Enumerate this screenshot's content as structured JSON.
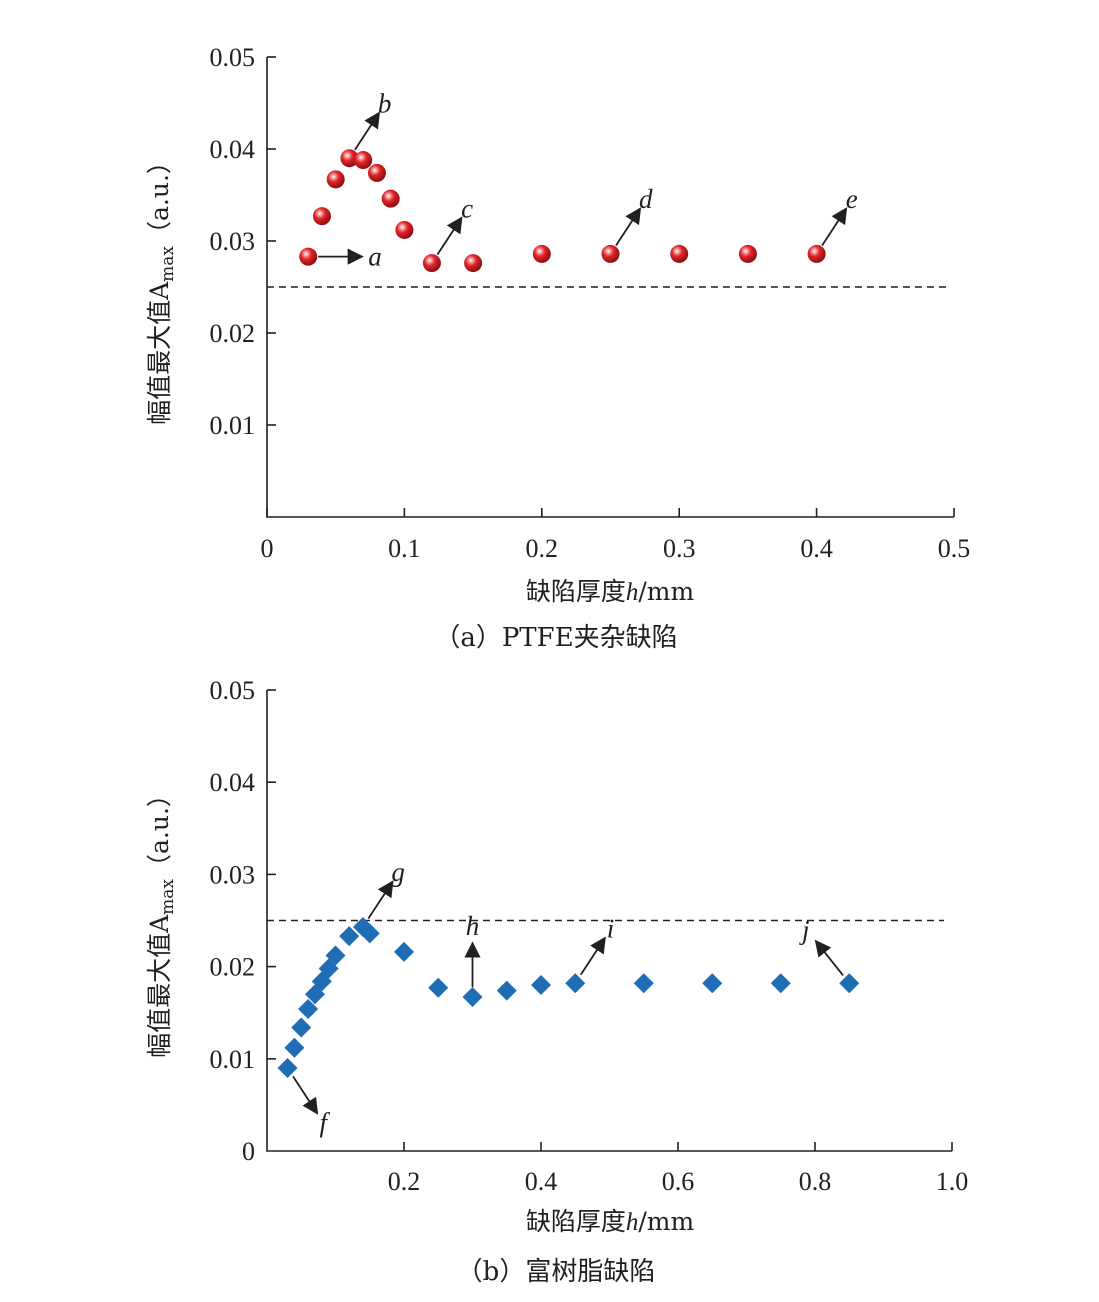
{
  "chart_data": [
    {
      "type": "scatter",
      "caption": "（a）PTFE夹杂缺陷",
      "xlabel_parts": [
        "缺陷厚度",
        "h",
        "/mm"
      ],
      "ylabel_parts": [
        "幅值最大值A",
        "max",
        "（a.u.）"
      ],
      "xlim": [
        0,
        0.5
      ],
      "ylim": [
        0,
        0.05
      ],
      "xticks": [
        0,
        0.1,
        0.2,
        0.3,
        0.4,
        0.5
      ],
      "xtick_labels": [
        "0",
        "0.1",
        "0.2",
        "0.3",
        "0.4",
        "0.5"
      ],
      "yticks": [
        0.01,
        0.02,
        0.03,
        0.04,
        0.05
      ],
      "ytick_labels": [
        "0.01",
        "0.02",
        "0.03",
        "0.04",
        "0.05"
      ],
      "threshold": 0.025,
      "marker": "sphere",
      "color": "#e0262a",
      "series": [
        {
          "x": [
            0.03,
            0.04,
            0.05,
            0.06,
            0.07,
            0.08,
            0.09,
            0.1,
            0.12,
            0.15,
            0.2,
            0.25,
            0.3,
            0.35,
            0.4
          ],
          "y": [
            0.0283,
            0.0327,
            0.0367,
            0.039,
            0.0388,
            0.0374,
            0.0346,
            0.0312,
            0.0276,
            0.0276,
            0.0286,
            0.0286,
            0.0286,
            0.0286,
            0.0286
          ]
        }
      ],
      "annotations": [
        {
          "label": "a",
          "x": 0.03,
          "y": 0.0283,
          "dir": "right"
        },
        {
          "label": "b",
          "x": 0.06,
          "y": 0.039,
          "dir": "up-right"
        },
        {
          "label": "c",
          "x": 0.12,
          "y": 0.0276,
          "dir": "up-right"
        },
        {
          "label": "d",
          "x": 0.25,
          "y": 0.0286,
          "dir": "up-right"
        },
        {
          "label": "e",
          "x": 0.4,
          "y": 0.0286,
          "dir": "up-right"
        }
      ]
    },
    {
      "type": "scatter",
      "caption": "（b）富树脂缺陷",
      "xlabel_parts": [
        "缺陷厚度",
        "h",
        "/mm"
      ],
      "ylabel_parts": [
        "幅值最大值A",
        "max",
        "（a.u.）"
      ],
      "xlim": [
        0,
        1.0
      ],
      "ylim": [
        0,
        0.05
      ],
      "xticks": [
        0.2,
        0.4,
        0.6,
        0.8,
        1.0
      ],
      "xtick_labels": [
        "0.2",
        "0.4",
        "0.6",
        "0.8",
        "1.0"
      ],
      "yticks": [
        0,
        0.01,
        0.02,
        0.03,
        0.04,
        0.05
      ],
      "ytick_labels": [
        "0",
        "0.01",
        "0.02",
        "0.03",
        "0.04",
        "0.05"
      ],
      "threshold": 0.025,
      "marker": "diamond",
      "color": "#1f6db5",
      "series": [
        {
          "x": [
            0.03,
            0.04,
            0.05,
            0.06,
            0.07,
            0.08,
            0.09,
            0.1,
            0.12,
            0.14,
            0.15,
            0.2,
            0.25,
            0.3,
            0.35,
            0.4,
            0.45,
            0.55,
            0.65,
            0.75,
            0.85
          ],
          "y": [
            0.009,
            0.0112,
            0.0134,
            0.0154,
            0.017,
            0.0184,
            0.0198,
            0.0212,
            0.0233,
            0.0243,
            0.0236,
            0.0216,
            0.0177,
            0.0167,
            0.0174,
            0.018,
            0.0182,
            0.0182,
            0.0182,
            0.0182,
            0.0182
          ]
        }
      ],
      "annotations": [
        {
          "label": "f",
          "x": 0.03,
          "y": 0.009,
          "dir": "down-right"
        },
        {
          "label": "g",
          "x": 0.14,
          "y": 0.0243,
          "dir": "up-right"
        },
        {
          "label": "h",
          "x": 0.3,
          "y": 0.0167,
          "dir": "up"
        },
        {
          "label": "i",
          "x": 0.45,
          "y": 0.0182,
          "dir": "up-right"
        },
        {
          "label": "j",
          "x": 0.85,
          "y": 0.0182,
          "dir": "up-left"
        }
      ]
    }
  ]
}
